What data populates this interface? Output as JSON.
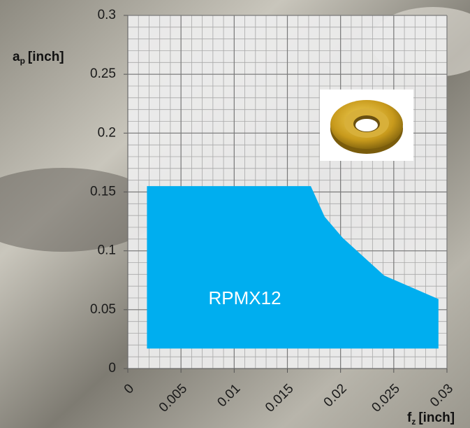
{
  "chart_data": {
    "type": "area",
    "y_label": {
      "symbol": "a",
      "subscript": "p",
      "unit": "[inch]"
    },
    "x_label": {
      "symbol": "f",
      "subscript": "z",
      "unit": "[inch]"
    },
    "xlim": [
      0,
      0.03
    ],
    "xticks": [
      0,
      0.005,
      0.01,
      0.015,
      0.02,
      0.025,
      0.03
    ],
    "ylim": [
      0,
      0.3
    ],
    "yticks": [
      0,
      0.05,
      0.1,
      0.15,
      0.2,
      0.25,
      0.3
    ],
    "grid": true,
    "series": [
      {
        "name": "RPMX12",
        "color": "#00aeef",
        "x": [
          0.0018,
          0.0018,
          0.0172,
          0.0185,
          0.0202,
          0.0241,
          0.0292,
          0.0292
        ],
        "values": [
          0.017,
          0.155,
          0.155,
          0.129,
          0.111,
          0.079,
          0.059,
          0.017
        ]
      }
    ]
  }
}
